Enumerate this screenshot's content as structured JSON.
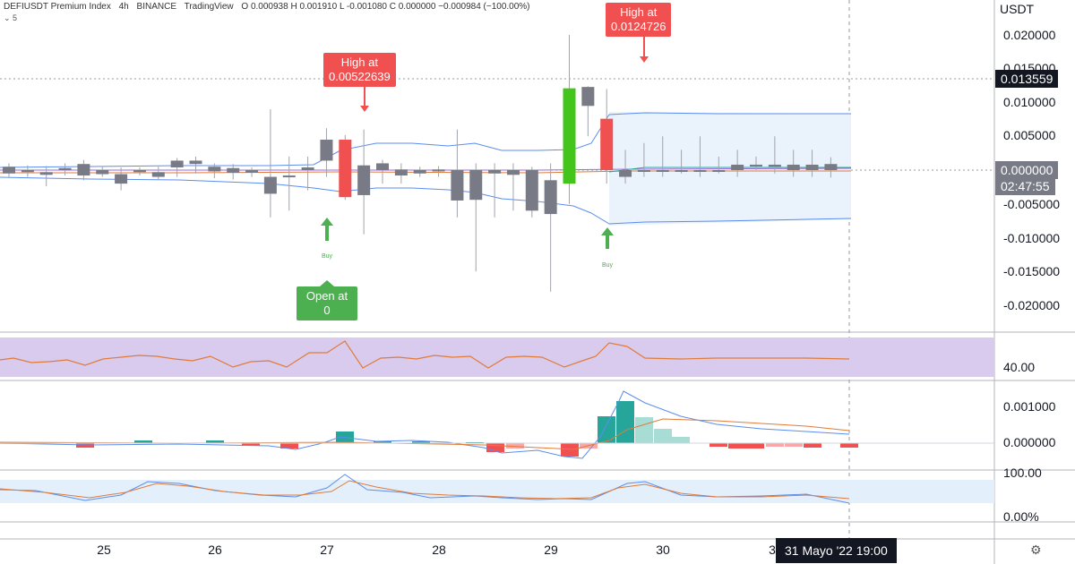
{
  "header": {
    "symbol": "DEFIUSDT Premium Index",
    "timeframe": "4h",
    "exchange": "BINANCE",
    "platform": "TradingView",
    "ohlc": "O 0.000938 H 0.001910 L -0.001080 C 0.000000 −0.000984 (−100.00%)",
    "sub": "5"
  },
  "price_axis": {
    "unit": "USDT",
    "ticks": [
      "0.020000",
      "0.015000",
      "0.010000",
      "0.005000",
      "0.000000",
      "-0.005000",
      "-0.010000",
      "-0.015000",
      "-0.020000"
    ],
    "last_price_label": "0.013559",
    "current_label": "0.000000",
    "countdown": "02:47:55"
  },
  "time_axis": {
    "ticks": [
      "25",
      "26",
      "27",
      "28",
      "29",
      "30",
      "3"
    ],
    "crosshair_label": "31 Mayo '22   19:00"
  },
  "callouts": {
    "high1": {
      "line1": "High at",
      "line2": "0.00522639"
    },
    "high2": {
      "line1": "High at",
      "line2": "0.0124726"
    },
    "open1": {
      "line1": "Open at",
      "line2": "0"
    }
  },
  "signals": [
    {
      "label": "Buy"
    },
    {
      "label": "Buy"
    }
  ],
  "rsi": {
    "label": "40.00"
  },
  "macd": {
    "ticks": [
      "0.001000",
      "0.000000"
    ]
  },
  "stoch": {
    "ticks": [
      "100.00",
      "0.00%"
    ]
  },
  "colors": {
    "up": "#4caf50",
    "down": "#f05050",
    "neutral": "#787b86",
    "band": "#5b8def",
    "rsi_bg": "#d9cbee",
    "rsi_line": "#e07b39"
  },
  "chart_data": {
    "type": "candlestick",
    "candles": [
      {
        "o": 0.0005,
        "c": -0.0005,
        "h": 0.001,
        "l": -0.001
      },
      {
        "o": 0.0,
        "c": -0.0003,
        "h": 0.0007,
        "l": -0.001
      },
      {
        "o": -0.0003,
        "c": -0.0007,
        "h": 0.0006,
        "l": -0.0024
      },
      {
        "o": 0.0,
        "c": 0.0003,
        "h": 0.001,
        "l": -0.0008
      },
      {
        "o": 0.0009,
        "c": -0.0008,
        "h": 0.0015,
        "l": -0.0015
      },
      {
        "o": 0.0,
        "c": -0.0006,
        "h": 0.0006,
        "l": -0.001
      },
      {
        "o": -0.0006,
        "c": -0.002,
        "h": 0.0004,
        "l": -0.003
      },
      {
        "o": -0.0003,
        "c": 0.0,
        "h": 0.0004,
        "l": -0.0008
      },
      {
        "o": -0.0003,
        "c": -0.001,
        "h": 0.0005,
        "l": -0.0015
      },
      {
        "o": 0.0004,
        "c": 0.0014,
        "h": 0.0018,
        "l": -0.001
      },
      {
        "o": 0.0014,
        "c": 0.0009,
        "h": 0.002,
        "l": -0.0005
      },
      {
        "o": 0.0005,
        "c": -0.0002,
        "h": 0.001,
        "l": -0.0012
      },
      {
        "o": 0.0003,
        "c": -0.0004,
        "h": 0.0009,
        "l": -0.0014
      },
      {
        "o": 0.0,
        "c": -0.0004,
        "h": 0.0004,
        "l": -0.001
      },
      {
        "o": -0.001,
        "c": -0.0035,
        "h": 0.009,
        "l": -0.007
      },
      {
        "o": -0.0008,
        "c": -0.0008,
        "h": 0.002,
        "l": -0.006
      },
      {
        "o": 0.0,
        "c": 0.0004,
        "h": 0.002,
        "l": -0.003
      },
      {
        "o": 0.0014,
        "c": 0.0045,
        "h": 0.0062,
        "l": -0.001
      },
      {
        "o": 0.0045,
        "c": -0.004,
        "h": 0.0052,
        "l": -0.0044
      },
      {
        "o": 0.0007,
        "c": -0.0037,
        "h": 0.006,
        "l": -0.0095
      },
      {
        "o": 0.001,
        "c": 0.0,
        "h": 0.0015,
        "l": -0.002
      },
      {
        "o": 0.0001,
        "c": -0.0008,
        "h": 0.001,
        "l": -0.002
      },
      {
        "o": 0.0,
        "c": -0.0005,
        "h": 0.0005,
        "l": -0.001
      },
      {
        "o": 0.0001,
        "c": -0.0002,
        "h": 0.0006,
        "l": -0.001
      },
      {
        "o": 0.0,
        "c": -0.0045,
        "h": 0.006,
        "l": -0.007
      },
      {
        "o": 0.0,
        "c": -0.0044,
        "h": 0.001,
        "l": -0.015
      },
      {
        "o": 0.0,
        "c": -0.0005,
        "h": 0.001,
        "l": -0.007
      },
      {
        "o": 0.0,
        "c": -0.0007,
        "h": 0.001,
        "l": -0.006
      },
      {
        "o": 0.0,
        "c": -0.006,
        "h": 0.0005,
        "l": -0.007
      },
      {
        "o": -0.0015,
        "c": -0.0065,
        "h": 0.001,
        "l": -0.018
      },
      {
        "o": -0.002,
        "c": 0.0121,
        "h": 0.02,
        "l": -0.005
      },
      {
        "o": 0.0095,
        "c": 0.0123,
        "h": 0.0124,
        "l": 0.005
      },
      {
        "o": 0.0076,
        "c": 0.0,
        "h": 0.012,
        "l": -0.002
      },
      {
        "o": 0.0,
        "c": -0.001,
        "h": 0.003,
        "l": -0.002
      },
      {
        "o": 0.0,
        "c": -0.0002,
        "h": 0.004,
        "l": -0.001
      },
      {
        "o": 0.0,
        "c": 0.0,
        "h": 0.005,
        "l": -0.001
      },
      {
        "o": 0.0,
        "c": 0.0,
        "h": 0.003,
        "l": -0.0005
      },
      {
        "o": 0.0,
        "c": 0.0,
        "h": 0.005,
        "l": -0.001
      },
      {
        "o": 0.0,
        "c": 0.0,
        "h": 0.002,
        "l": -0.0005
      },
      {
        "o": 0.0,
        "c": 0.0008,
        "h": 0.003,
        "l": -0.001
      },
      {
        "o": 0.0008,
        "c": 0.0008,
        "h": 0.002,
        "l": 0.0
      },
      {
        "o": 0.0008,
        "c": 0.0005,
        "h": 0.005,
        "l": -0.0005
      },
      {
        "o": 0.0,
        "c": 0.0008,
        "h": 0.003,
        "l": -0.001
      },
      {
        "o": 0.0,
        "c": 0.0008,
        "h": 0.003,
        "l": -0.001
      },
      {
        "o": 0.0009,
        "c": 0.0,
        "h": 0.0019,
        "l": -0.0011
      }
    ],
    "ylim": [
      -0.0225,
      0.0225
    ]
  }
}
